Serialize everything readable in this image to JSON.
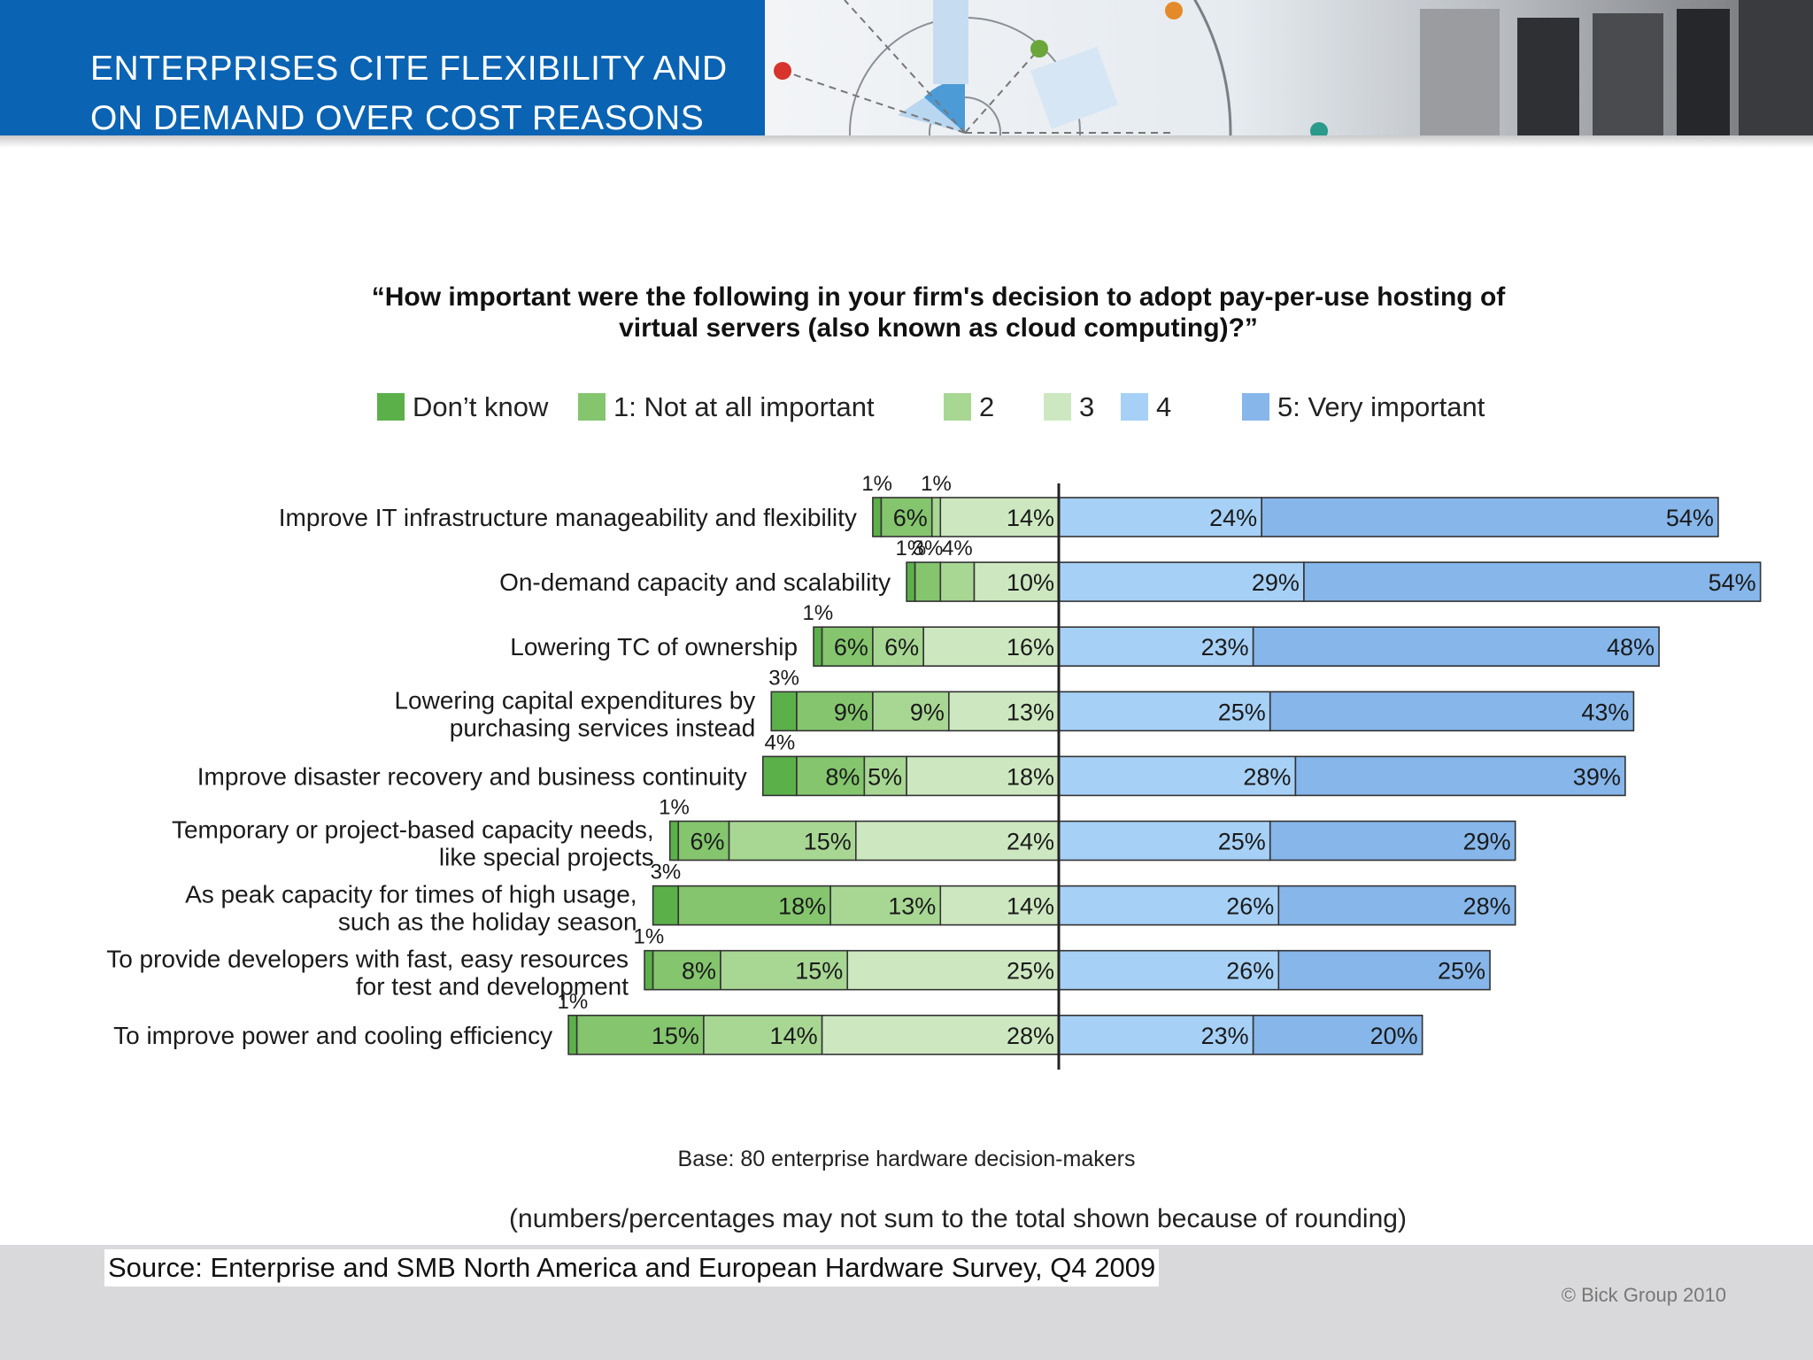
{
  "header": {
    "title_line1": "ENTERPRISES CITE FLEXIBILITY AND",
    "title_line2": "ON DEMAND OVER COST REASONS"
  },
  "question": {
    "line1": "“How important were the following in your firm's decision to adopt pay-per-use hosting of",
    "line2": "virtual servers (also known as cloud computing)?”"
  },
  "legend": [
    {
      "label": "Don’t know",
      "color": "#5cb04a"
    },
    {
      "label": "1: Not at all important",
      "color": "#84c56e"
    },
    {
      "label": "2",
      "color": "#a8d794"
    },
    {
      "label": "3",
      "color": "#cde8c0"
    },
    {
      "label": "4",
      "color": "#a6d0f6"
    },
    {
      "label": "5: Very important",
      "color": "#86b6ea"
    }
  ],
  "chart_data": {
    "type": "bar",
    "orientation": "horizontal",
    "stacked": "diverging",
    "title": "“How important were the following in your firm's decision to adopt pay-per-use hosting of virtual servers (also known as cloud computing)?”",
    "categories": [
      [
        "Improve IT infrastructure manageability and flexibility"
      ],
      [
        "On-demand capacity and scalability"
      ],
      [
        "Lowering TC of ownership"
      ],
      [
        "Lowering capital expenditures by",
        "purchasing services instead"
      ],
      [
        "Improve disaster recovery and business continuity"
      ],
      [
        "Temporary or project-based capacity needs,",
        "like special projects"
      ],
      [
        "As peak capacity for times of high usage,",
        "such as the holiday season"
      ],
      [
        "To provide developers with fast, easy resources",
        "for test and development"
      ],
      [
        "To improve power and cooling efficiency"
      ]
    ],
    "series": [
      {
        "name": "Don’t know",
        "values": [
          1,
          1,
          1,
          3,
          4,
          1,
          3,
          1,
          1
        ]
      },
      {
        "name": "1: Not at all important",
        "values": [
          6,
          3,
          6,
          9,
          8,
          6,
          18,
          8,
          15
        ]
      },
      {
        "name": "2",
        "values": [
          1,
          4,
          6,
          9,
          5,
          15,
          13,
          15,
          14
        ]
      },
      {
        "name": "3",
        "values": [
          14,
          10,
          16,
          13,
          18,
          24,
          14,
          25,
          28
        ]
      },
      {
        "name": "4",
        "values": [
          24,
          29,
          23,
          25,
          28,
          25,
          26,
          26,
          23
        ]
      },
      {
        "name": "5: Very important",
        "values": [
          54,
          54,
          48,
          43,
          39,
          29,
          28,
          25,
          20
        ]
      }
    ],
    "unit": "%"
  },
  "notes": {
    "base": "Base: 80 enterprise hardware decision-makers",
    "rounding": "(numbers/percentages may not sum to the total shown because of rounding)"
  },
  "footer": {
    "source": "Source: Enterprise and SMB North America and European Hardware Survey, Q4 2009",
    "copyright": "© Bick Group 2010"
  }
}
